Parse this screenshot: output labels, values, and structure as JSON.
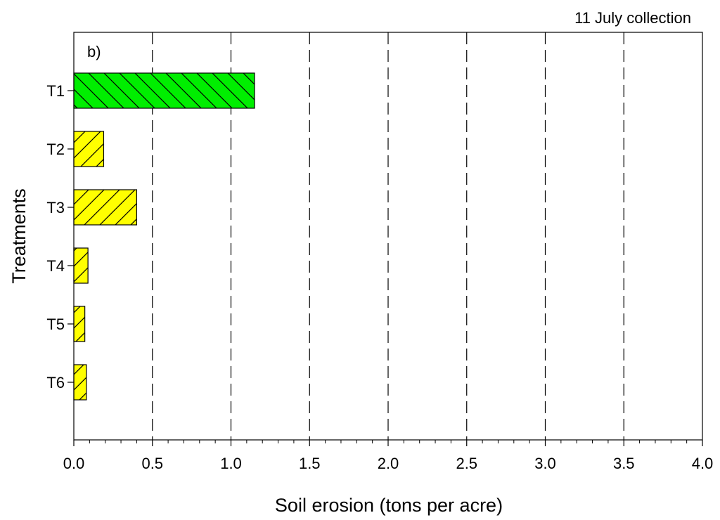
{
  "chart_data": {
    "type": "bar",
    "orientation": "horizontal",
    "title": "11 July collection",
    "panel_label": "b)",
    "xlabel": "Soil erosion (tons per acre)",
    "ylabel": "Treatments",
    "xlim": [
      0,
      4.0
    ],
    "xticks": [
      "0.0",
      "0.5",
      "1.0",
      "1.5",
      "2.0",
      "2.5",
      "3.0",
      "3.5",
      "4.0"
    ],
    "grid": "vertical dashed",
    "categories": [
      "T1",
      "T2",
      "T3",
      "T4",
      "T5",
      "T6"
    ],
    "values": [
      1.15,
      0.19,
      0.4,
      0.09,
      0.07,
      0.08
    ],
    "bar_colors": [
      "#00ee00",
      "#ffff00",
      "#ffff00",
      "#ffff00",
      "#ffff00",
      "#ffff00"
    ],
    "bar_hatch": [
      "backslash",
      "slash",
      "slash",
      "slash",
      "slash",
      "slash"
    ]
  }
}
